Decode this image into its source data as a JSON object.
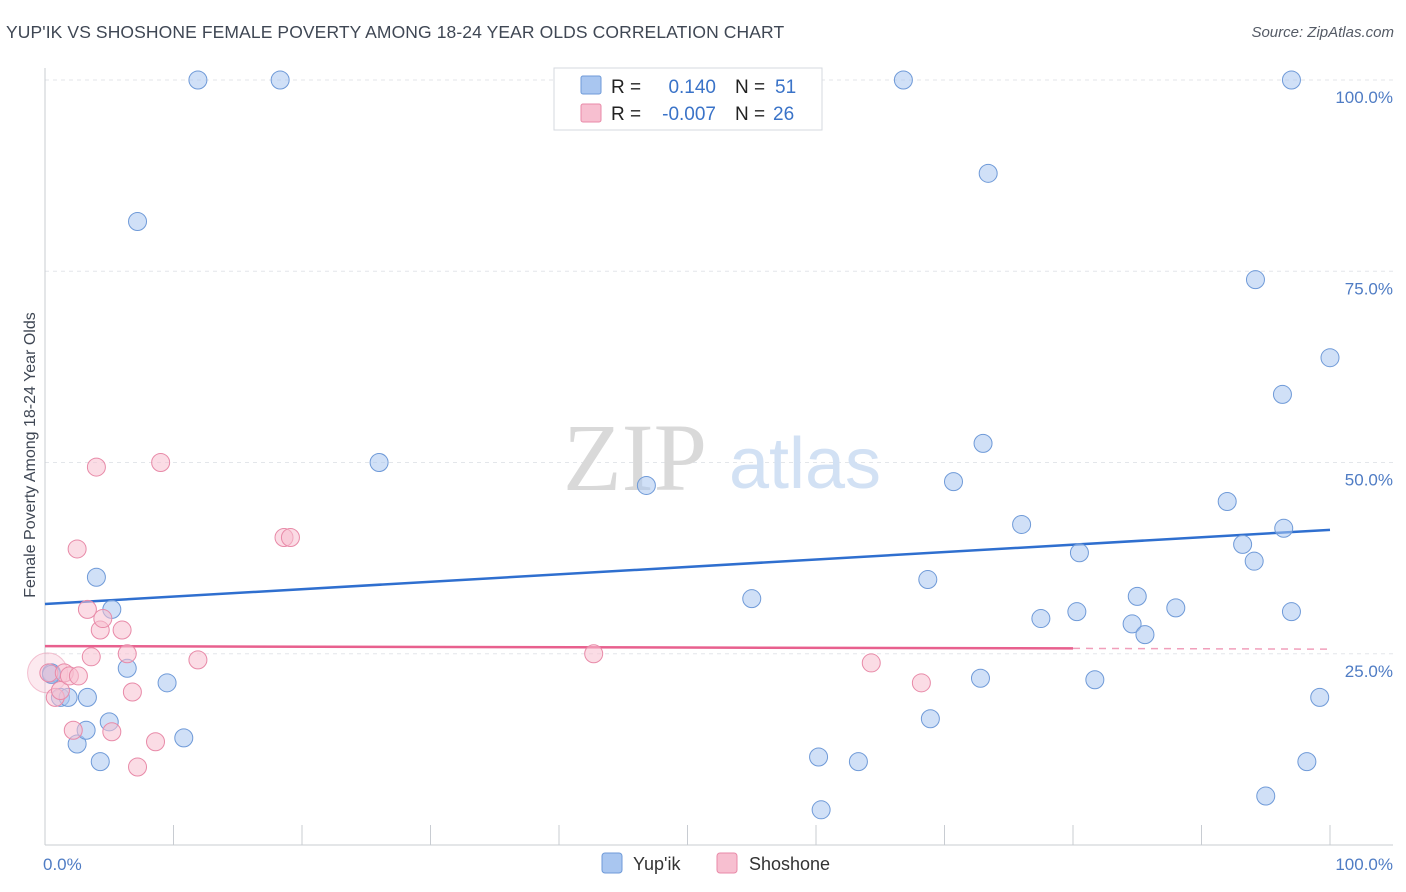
{
  "header": {
    "title": "YUP'IK VS SHOSHONE FEMALE POVERTY AMONG 18-24 YEAR OLDS CORRELATION CHART",
    "source": "Source: ZipAtlas.com"
  },
  "watermark": {
    "zip": "ZIP",
    "atlas": "atlas"
  },
  "legend_box": {
    "rows": [
      {
        "r_label": "R =",
        "r_value": "0.140",
        "n_label": "N =",
        "n_value": "51",
        "color": "#a9c6f0",
        "stroke": "#6f9ad8"
      },
      {
        "r_label": "R =",
        "r_value": "-0.007",
        "n_label": "N = ",
        "n_value": "26",
        "color": "#f7bfd0",
        "stroke": "#e88aa8"
      }
    ]
  },
  "bottom_legend": [
    {
      "label": "Yup'ik",
      "color": "#a9c6f0",
      "stroke": "#6f9ad8"
    },
    {
      "label": "Shoshone",
      "color": "#f7bfd0",
      "stroke": "#e88aa8"
    }
  ],
  "chart_data": {
    "type": "scatter",
    "title": "YUP'IK VS SHOSHONE FEMALE POVERTY AMONG 18-24 YEAR OLDS CORRELATION CHART",
    "xlabel": "",
    "ylabel": "Female Poverty Among 18-24 Year Olds",
    "xlim": [
      0,
      100
    ],
    "ylim": [
      0,
      100
    ],
    "x_tick_labels": [
      "0.0%",
      "100.0%"
    ],
    "y_ticks": [
      25,
      50,
      75,
      100
    ],
    "y_tick_labels": [
      "25.0%",
      "50.0%",
      "75.0%",
      "100.0%"
    ],
    "grid": true,
    "series": [
      {
        "name": "Yup'ik",
        "color": "#a9c6f0",
        "stroke": "#6f9ad8",
        "line_color": "#2f6fcf",
        "trend": {
          "x0": 0,
          "y0": 31.5,
          "x1": 100,
          "y1": 41.2
        },
        "points": [
          [
            0.5,
            22.5
          ],
          [
            1.2,
            19.3
          ],
          [
            1.8,
            19.3
          ],
          [
            2.5,
            13.2
          ],
          [
            3.2,
            15.0
          ],
          [
            3.3,
            19.3
          ],
          [
            4.0,
            35.0
          ],
          [
            4.3,
            10.9
          ],
          [
            5.0,
            16.1
          ],
          [
            5.2,
            30.8
          ],
          [
            6.4,
            23.1
          ],
          [
            7.2,
            81.5
          ],
          [
            9.5,
            21.2
          ],
          [
            10.8,
            14.0
          ],
          [
            11.9,
            100.0
          ],
          [
            18.3,
            100.0
          ],
          [
            26.0,
            50.0
          ],
          [
            46.8,
            47.0
          ],
          [
            55.0,
            32.2
          ],
          [
            60.2,
            11.5
          ],
          [
            60.4,
            4.6
          ],
          [
            63.3,
            10.9
          ],
          [
            66.8,
            100.0
          ],
          [
            68.7,
            34.7
          ],
          [
            68.9,
            16.5
          ],
          [
            70.7,
            47.5
          ],
          [
            72.8,
            21.8
          ],
          [
            73.0,
            52.5
          ],
          [
            73.4,
            87.8
          ],
          [
            76.0,
            41.9
          ],
          [
            77.5,
            29.6
          ],
          [
            80.3,
            30.5
          ],
          [
            80.5,
            38.2
          ],
          [
            81.7,
            21.6
          ],
          [
            84.6,
            28.9
          ],
          [
            85.0,
            32.5
          ],
          [
            85.6,
            27.5
          ],
          [
            88.0,
            31.0
          ],
          [
            92.0,
            44.9
          ],
          [
            93.2,
            39.3
          ],
          [
            94.1,
            37.1
          ],
          [
            94.2,
            73.9
          ],
          [
            95.0,
            6.4
          ],
          [
            96.3,
            58.9
          ],
          [
            96.4,
            41.4
          ],
          [
            97.0,
            30.5
          ],
          [
            97.0,
            100.0
          ],
          [
            98.2,
            10.9
          ],
          [
            99.2,
            19.3
          ],
          [
            100.0,
            63.7
          ],
          [
            0.5,
            22.3
          ]
        ]
      },
      {
        "name": "Shoshone",
        "color": "#f7bfd0",
        "stroke": "#e88aa8",
        "line_color": "#e8608e",
        "trend": {
          "x0": 0,
          "y0": 26.0,
          "x1": 80,
          "y1": 25.7,
          "x2": 100,
          "y2": 25.6
        },
        "points": [
          [
            0.3,
            22.5
          ],
          [
            0.8,
            19.3
          ],
          [
            1.2,
            20.2
          ],
          [
            1.5,
            22.5
          ],
          [
            1.9,
            22.1
          ],
          [
            2.2,
            15.0
          ],
          [
            2.5,
            38.7
          ],
          [
            2.6,
            22.1
          ],
          [
            3.3,
            30.8
          ],
          [
            3.6,
            24.6
          ],
          [
            4.0,
            49.4
          ],
          [
            4.3,
            28.1
          ],
          [
            4.5,
            29.6
          ],
          [
            5.2,
            14.8
          ],
          [
            6.0,
            28.1
          ],
          [
            6.4,
            25.0
          ],
          [
            6.8,
            20.0
          ],
          [
            7.2,
            10.2
          ],
          [
            8.6,
            13.5
          ],
          [
            9.0,
            50.0
          ],
          [
            11.9,
            24.2
          ],
          [
            18.6,
            40.2
          ],
          [
            19.1,
            40.2
          ],
          [
            42.7,
            25.0
          ],
          [
            64.3,
            23.8
          ],
          [
            68.2,
            21.2
          ]
        ]
      }
    ]
  }
}
